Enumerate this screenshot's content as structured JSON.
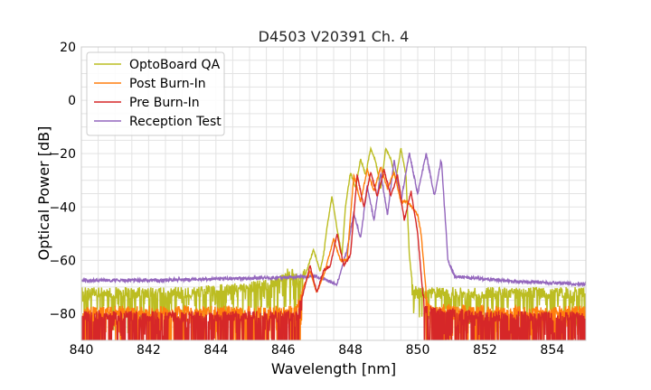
{
  "chart_data": {
    "type": "line",
    "title": "D4503 V20391 Ch. 4",
    "xlabel": "Wavelength [nm]",
    "ylabel": "Optical Power [dB]",
    "xlim": [
      840,
      855
    ],
    "ylim": [
      -90,
      20
    ],
    "xticks": [
      840,
      842,
      844,
      846,
      848,
      850,
      852,
      854
    ],
    "yticks": [
      20,
      0,
      -20,
      -40,
      -60,
      -80
    ],
    "grid": true,
    "legend_position": "top-left",
    "series": [
      {
        "name": "OptoBoard QA",
        "color": "#bcbd22",
        "noise_floor": -74,
        "points": [
          [
            840,
            -73
          ],
          [
            843,
            -73
          ],
          [
            845,
            -71
          ],
          [
            845.8,
            -69
          ],
          [
            846.1,
            -66
          ],
          [
            846.3,
            -66
          ],
          [
            846.5,
            -70
          ],
          [
            846.7,
            -64
          ],
          [
            846.9,
            -56
          ],
          [
            847.1,
            -64
          ],
          [
            847.2,
            -58
          ],
          [
            847.3,
            -48
          ],
          [
            847.45,
            -36
          ],
          [
            847.6,
            -48
          ],
          [
            847.75,
            -58
          ],
          [
            847.85,
            -40
          ],
          [
            848.0,
            -27
          ],
          [
            848.15,
            -33
          ],
          [
            848.3,
            -22
          ],
          [
            848.45,
            -28
          ],
          [
            848.6,
            -18
          ],
          [
            848.75,
            -23
          ],
          [
            848.9,
            -33
          ],
          [
            849.05,
            -18
          ],
          [
            849.2,
            -22
          ],
          [
            849.35,
            -30
          ],
          [
            849.5,
            -18
          ],
          [
            849.65,
            -28
          ],
          [
            849.75,
            -58
          ],
          [
            849.85,
            -70
          ],
          [
            850.0,
            -73
          ],
          [
            851,
            -73
          ],
          [
            855,
            -73
          ]
        ]
      },
      {
        "name": "Post Burn-In",
        "color": "#ff7f0e",
        "noise_floor": -80,
        "points": [
          [
            840,
            -80
          ],
          [
            845,
            -80
          ],
          [
            846.4,
            -80
          ],
          [
            846.6,
            -70
          ],
          [
            846.8,
            -64
          ],
          [
            847.0,
            -72
          ],
          [
            847.2,
            -66
          ],
          [
            847.5,
            -52
          ],
          [
            847.7,
            -60
          ],
          [
            847.9,
            -60
          ],
          [
            848.1,
            -28
          ],
          [
            848.3,
            -38
          ],
          [
            848.5,
            -26
          ],
          [
            848.7,
            -34
          ],
          [
            848.9,
            -25
          ],
          [
            849.1,
            -33
          ],
          [
            849.3,
            -27
          ],
          [
            849.5,
            -38
          ],
          [
            849.7,
            -38
          ],
          [
            850.0,
            -43
          ],
          [
            850.1,
            -50
          ],
          [
            850.3,
            -79
          ],
          [
            852,
            -80
          ],
          [
            855,
            -80
          ]
        ]
      },
      {
        "name": "Pre Burn-In",
        "color": "#d62728",
        "noise_floor": -82,
        "points": [
          [
            840,
            -82
          ],
          [
            846.4,
            -82
          ],
          [
            846.6,
            -72
          ],
          [
            846.8,
            -62
          ],
          [
            847.0,
            -72
          ],
          [
            847.2,
            -64
          ],
          [
            847.4,
            -62
          ],
          [
            847.6,
            -50
          ],
          [
            847.8,
            -62
          ],
          [
            848.0,
            -58
          ],
          [
            848.2,
            -28
          ],
          [
            848.4,
            -40
          ],
          [
            848.6,
            -27
          ],
          [
            848.8,
            -36
          ],
          [
            849.0,
            -26
          ],
          [
            849.2,
            -36
          ],
          [
            849.4,
            -28
          ],
          [
            849.6,
            -45
          ],
          [
            849.8,
            -34
          ],
          [
            850.0,
            -50
          ],
          [
            850.2,
            -80
          ],
          [
            852,
            -82
          ],
          [
            855,
            -82
          ]
        ]
      },
      {
        "name": "Reception Test",
        "color": "#9467bd",
        "noise_floor": null,
        "points": [
          [
            840,
            -67.5
          ],
          [
            842,
            -67.5
          ],
          [
            844,
            -67
          ],
          [
            846,
            -66.5
          ],
          [
            847,
            -66
          ],
          [
            847.6,
            -69
          ],
          [
            847.9,
            -56
          ],
          [
            848.1,
            -42
          ],
          [
            848.3,
            -52
          ],
          [
            848.5,
            -32
          ],
          [
            848.7,
            -45
          ],
          [
            848.9,
            -27
          ],
          [
            849.1,
            -43
          ],
          [
            849.3,
            -22
          ],
          [
            849.5,
            -38
          ],
          [
            849.75,
            -20
          ],
          [
            850.0,
            -35
          ],
          [
            850.25,
            -20
          ],
          [
            850.5,
            -36
          ],
          [
            850.7,
            -22
          ],
          [
            850.9,
            -60
          ],
          [
            851.1,
            -66
          ],
          [
            852,
            -67
          ],
          [
            853,
            -68
          ],
          [
            854,
            -68.5
          ],
          [
            855,
            -69
          ]
        ]
      }
    ]
  }
}
